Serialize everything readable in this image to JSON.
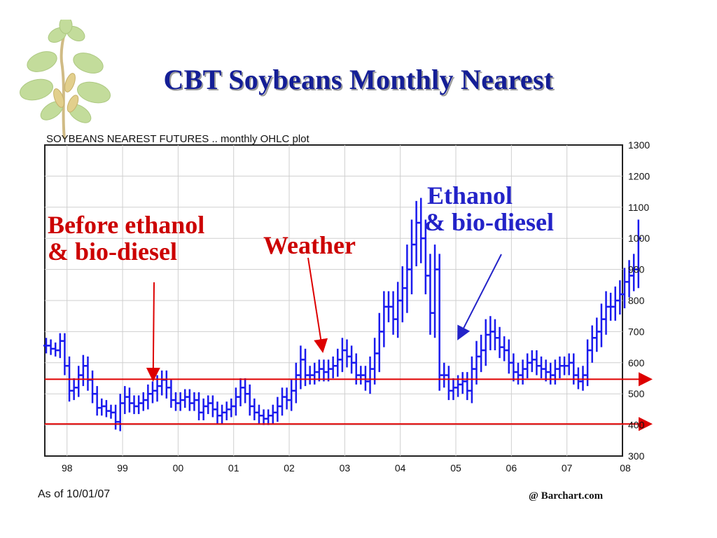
{
  "slide": {
    "title": "CBT Soybeans Monthly Nearest",
    "footer_left": "As of 10/01/07",
    "footer_right": "@ Barchart.com"
  },
  "colors": {
    "title": "#141e96",
    "ohlc": "#1a1aee",
    "annotation_red": "#cc0000",
    "annotation_blue": "#2323c8",
    "grid": "#cfcfcf"
  },
  "chart_data": {
    "type": "ohlc",
    "title": "SOYBEANS NEAREST FUTURES .. monthly OHLC plot",
    "ylim": [
      300,
      1300
    ],
    "xlim": [
      1997.6,
      2008.0
    ],
    "y_ticks": [
      "300",
      "400",
      "500",
      "600",
      "700",
      "800",
      "900",
      "1000",
      "1100",
      "1200",
      "1300"
    ],
    "x_ticks": [
      {
        "label": "98",
        "x": 1998.0
      },
      {
        "label": "99",
        "x": 1999.0
      },
      {
        "label": "00",
        "x": 2000.0
      },
      {
        "label": "01",
        "x": 2001.0
      },
      {
        "label": "02",
        "x": 2002.0
      },
      {
        "label": "03",
        "x": 2003.0
      },
      {
        "label": "04",
        "x": 2004.0
      },
      {
        "label": "05",
        "x": 2005.0
      },
      {
        "label": "06",
        "x": 2006.0
      },
      {
        "label": "07",
        "x": 2007.0
      },
      {
        "label": "08",
        "x": 2008.0
      }
    ],
    "grid": true,
    "series": [
      {
        "start": 1997.625,
        "step": 0.0833,
        "close": [
          655,
          645,
          640,
          670,
          590,
          510,
          520,
          560,
          590,
          545,
          500,
          455,
          460,
          445,
          440,
          410,
          470,
          490,
          470,
          460,
          470,
          480,
          500,
          510,
          525,
          545,
          520,
          480,
          470,
          480,
          490,
          470,
          480,
          440,
          460,
          470,
          450,
          430,
          440,
          450,
          460,
          490,
          520,
          500,
          460,
          440,
          430,
          420,
          430,
          440,
          460,
          490,
          480,
          510,
          560,
          610,
          560,
          560,
          570,
          580,
          570,
          580,
          590,
          610,
          640,
          620,
          600,
          560,
          560,
          540,
          580,
          630,
          700,
          780,
          780,
          740,
          800,
          840,
          900,
          980,
          1050,
          1000,
          880,
          760,
          900,
          560,
          560,
          510,
          520,
          530,
          540,
          510,
          580,
          620,
          640,
          690,
          700,
          680,
          650,
          640,
          600,
          570,
          560,
          580,
          600,
          610,
          590,
          580,
          570,
          560,
          580,
          590,
          590,
          600,
          560,
          540,
          560,
          640,
          680,
          700,
          740,
          780,
          780,
          800,
          820,
          860,
          880,
          900,
          1000
        ],
        "high_pad": [
          25,
          20,
          20,
          25,
          25,
          30,
          30,
          30,
          35,
          30,
          30,
          25,
          25,
          20,
          20,
          25,
          30,
          35,
          30,
          25,
          25,
          25,
          30,
          30,
          35,
          30,
          30,
          25,
          25,
          25,
          25,
          25,
          25,
          25,
          25,
          25,
          25,
          25,
          25,
          25,
          25,
          30,
          30,
          30,
          30,
          25,
          25,
          20,
          20,
          25,
          30,
          30,
          30,
          35,
          40,
          45,
          35,
          30,
          30,
          30,
          30,
          30,
          30,
          35,
          40,
          35,
          35,
          30,
          30,
          30,
          40,
          50,
          60,
          50,
          50,
          50,
          60,
          70,
          80,
          80,
          70,
          80,
          60,
          70,
          80,
          50,
          40,
          30,
          30,
          30,
          30,
          30,
          40,
          50,
          50,
          50,
          50,
          40,
          35,
          35,
          35,
          30,
          30,
          30,
          30,
          30,
          30,
          30,
          30,
          30,
          30,
          30,
          30,
          30,
          30,
          25,
          30,
          35,
          40,
          45,
          50,
          50,
          45,
          45,
          45,
          45,
          50,
          50,
          60
        ],
        "low_pad": [
          25,
          20,
          20,
          25,
          30,
          35,
          30,
          30,
          35,
          35,
          30,
          25,
          25,
          20,
          20,
          25,
          30,
          35,
          30,
          25,
          25,
          25,
          30,
          30,
          35,
          30,
          35,
          25,
          25,
          25,
          25,
          25,
          25,
          25,
          25,
          25,
          25,
          25,
          25,
          25,
          25,
          30,
          30,
          30,
          30,
          25,
          25,
          20,
          20,
          25,
          30,
          30,
          30,
          35,
          40,
          45,
          35,
          30,
          30,
          30,
          30,
          30,
          30,
          35,
          40,
          35,
          35,
          30,
          30,
          30,
          40,
          50,
          60,
          50,
          50,
          50,
          60,
          70,
          80,
          80,
          70,
          80,
          60,
          70,
          80,
          50,
          40,
          30,
          30,
          30,
          30,
          30,
          40,
          50,
          50,
          50,
          50,
          40,
          35,
          35,
          35,
          30,
          30,
          30,
          30,
          30,
          30,
          30,
          30,
          30,
          30,
          30,
          30,
          30,
          30,
          25,
          30,
          35,
          40,
          45,
          50,
          50,
          45,
          45,
          45,
          45,
          50,
          50,
          60
        ]
      }
    ],
    "reference_lines": [
      {
        "value": 547,
        "label": ""
      },
      {
        "value": 403,
        "label": ""
      }
    ],
    "annotations": [
      {
        "lines": [
          "Before ethanol",
          "& bio-diesel"
        ],
        "color": "red",
        "arrow_to": {
          "x": 1999.55,
          "y": 548
        }
      },
      {
        "lines": [
          "Weather"
        ],
        "color": "red",
        "arrow_to": {
          "x": 2002.6,
          "y": 640
        }
      },
      {
        "lines": [
          "Ethanol",
          "& bio-diesel"
        ],
        "color": "blue",
        "arrow_to": {
          "x": 2005.05,
          "y": 680
        }
      }
    ]
  }
}
